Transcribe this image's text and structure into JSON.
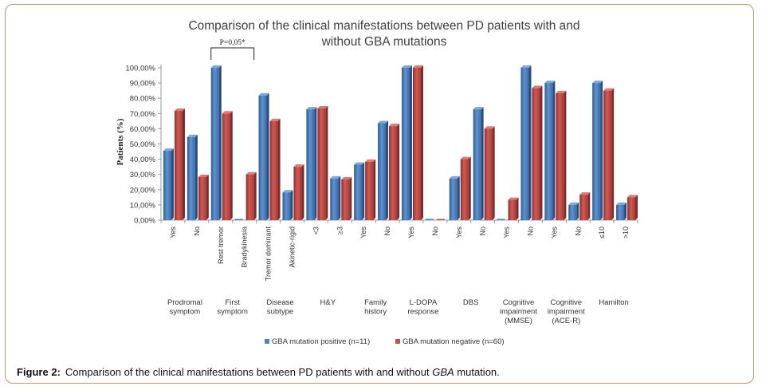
{
  "chart_data": {
    "type": "bar",
    "title": "Comparison of the clinical manifestations between PD patients with and without GBA mutations",
    "title_lines": [
      "Comparison of the clinical manifestations between PD patients with and",
      "without GBA mutations"
    ],
    "ylabel": "Patients (%)",
    "ylim": [
      0,
      100
    ],
    "yticks": [
      "0,00%",
      "10,00%",
      "20,00%",
      "30,00%",
      "40,00%",
      "50,00%",
      "60,00%",
      "70,00%",
      "80,00%",
      "90,00%",
      "100,00%"
    ],
    "categories": [
      "Yes",
      "No",
      "Rest tremor",
      "Bradykinesia",
      "Tremor dominant",
      "Akinetic-rigid",
      "<3",
      "≥3",
      "Yes",
      "No",
      "Yes",
      "No",
      "Yes",
      "No",
      "Yes",
      "No",
      "Yes",
      "No",
      "≤10",
      ">10"
    ],
    "groups": [
      {
        "label_lines": [
          "Prodromal",
          "symptom"
        ],
        "span": [
          0,
          1
        ]
      },
      {
        "label_lines": [
          "First",
          "symptom"
        ],
        "span": [
          2,
          3
        ]
      },
      {
        "label_lines": [
          "Disease",
          "subtype"
        ],
        "span": [
          4,
          5
        ]
      },
      {
        "label_lines": [
          "H&Y"
        ],
        "span": [
          6,
          7
        ]
      },
      {
        "label_lines": [
          "Family",
          "history"
        ],
        "span": [
          8,
          9
        ]
      },
      {
        "label_lines": [
          "L-DOPA",
          "response"
        ],
        "span": [
          10,
          11
        ]
      },
      {
        "label_lines": [
          "DBS"
        ],
        "span": [
          12,
          13
        ]
      },
      {
        "label_lines": [
          "Cognitive",
          "impairment",
          "(MMSE)"
        ],
        "span": [
          14,
          15
        ]
      },
      {
        "label_lines": [
          "Cognitive",
          "impairment",
          "(ACE-R)"
        ],
        "span": [
          16,
          17
        ]
      },
      {
        "label_lines": [
          "Hamilton"
        ],
        "span": [
          18,
          19
        ]
      }
    ],
    "series": [
      {
        "name": "GBA mutation positive (n=11)",
        "color": "#4f81bd",
        "values": [
          45.5,
          54.5,
          100,
          0,
          81.8,
          18.2,
          72.7,
          27.3,
          36.4,
          63.6,
          100,
          0,
          27.3,
          72.7,
          0,
          100,
          90.0,
          10.0,
          90.0,
          10.0
        ]
      },
      {
        "name": "GBA mutation negative (n=60)",
        "color": "#c0504d",
        "values": [
          71.7,
          28.3,
          70.0,
          30.0,
          65.0,
          35.0,
          73.3,
          26.7,
          38.3,
          61.7,
          100,
          0,
          40.0,
          60.0,
          13.3,
          86.7,
          83.3,
          16.7,
          85.0,
          15.0
        ]
      }
    ],
    "annotation": {
      "text": "P=0,05*",
      "span": [
        2,
        3
      ]
    },
    "legend_position": "bottom",
    "grid": false
  },
  "caption": {
    "label": "Figure 2:",
    "text_before": "Comparison of the clinical manifestations between PD patients with and without ",
    "italic": "GBA",
    "text_after": " mutation."
  }
}
